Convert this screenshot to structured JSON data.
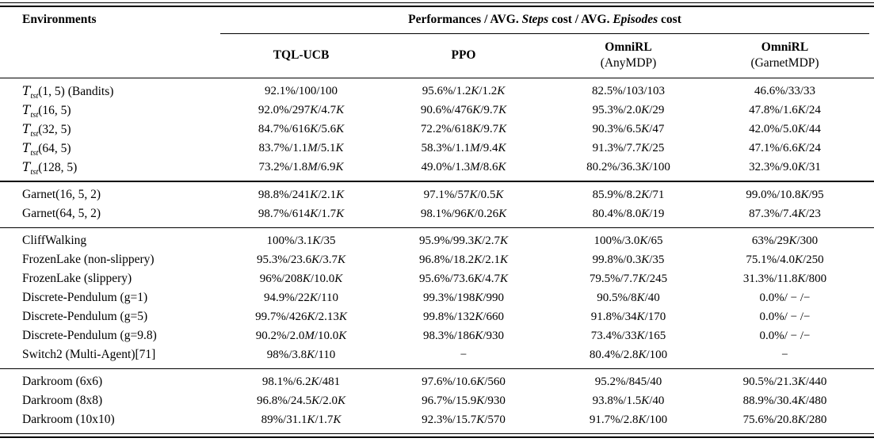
{
  "header": {
    "environments_label": "Environments",
    "performance_title_parts": [
      {
        "text": "Performances / AVG. ",
        "italic": false
      },
      {
        "text": "Steps",
        "italic": true
      },
      {
        "text": " cost / AVG. ",
        "italic": false
      },
      {
        "text": "Episodes",
        "italic": true
      },
      {
        "text": " cost",
        "italic": false
      }
    ],
    "columns": [
      {
        "name": "TQL-UCB",
        "sub": ""
      },
      {
        "name": "PPO",
        "sub": ""
      },
      {
        "name": "OmniRL",
        "sub": "(AnyMDP)"
      },
      {
        "name": "OmniRL",
        "sub": "(GarnetMDP)"
      }
    ]
  },
  "groups": [
    {
      "rows": [
        {
          "env": "𝒯_{tst}(1, 5) (Bandits)",
          "values": [
            "92.1%/100/100",
            "95.6%/1.2K/1.2K",
            "82.5%/103/103",
            "46.6%/33/33"
          ]
        },
        {
          "env": "𝒯_{tst}(16, 5)",
          "values": [
            "92.0%/297K/4.7K",
            "90.6%/476K/9.7K",
            "95.3%/2.0K/29",
            "47.8%/1.6K/24"
          ]
        },
        {
          "env": "𝒯_{tst}(32, 5)",
          "values": [
            "84.7%/616K/5.6K",
            "72.2%/618K/9.7K",
            "90.3%/6.5K/47",
            "42.0%/5.0K/44"
          ]
        },
        {
          "env": "𝒯_{tst}(64, 5)",
          "values": [
            "83.7%/1.1M/5.1K",
            "58.3%/1.1M/9.4K",
            "91.3%/7.7K/25",
            "47.1%/6.6K/24"
          ]
        },
        {
          "env": "𝒯_{tst}(128, 5)",
          "values": [
            "73.2%/1.8M/6.9K",
            "49.0%/1.3M/8.6K",
            "80.2%/36.3K/100",
            "32.3%/9.0K/31"
          ]
        }
      ]
    },
    {
      "rows": [
        {
          "env": "Garnet(16, 5, 2)",
          "values": [
            "98.8%/241K/2.1K",
            "97.1%/57K/0.5K",
            "85.9%/8.2K/71",
            "99.0%/10.8K/95"
          ]
        },
        {
          "env": "Garnet(64, 5, 2)",
          "values": [
            "98.7%/614K/1.7K",
            "98.1%/96K/0.26K",
            "80.4%/8.0K/19",
            "87.3%/7.4K/23"
          ]
        }
      ]
    },
    {
      "rows": [
        {
          "env": "CliffWalking",
          "values": [
            "100%/3.1K/35",
            "95.9%/99.3K/2.7K",
            "100%/3.0K/65",
            "63%/29K/300"
          ]
        },
        {
          "env": "FrozenLake (non-slippery)",
          "values": [
            "95.3%/23.6K/3.7K",
            "96.8%/18.2K/2.1K",
            "99.8%/0.3K/35",
            "75.1%/4.0K/250"
          ]
        },
        {
          "env": "FrozenLake (slippery)",
          "values": [
            "96%/208K/10.0K",
            "95.6%/73.6K/4.7K",
            "79.5%/7.7K/245",
            "31.3%/11.8K/800"
          ]
        },
        {
          "env": "Discrete-Pendulum (g=1)",
          "values": [
            "94.9%/22K/110",
            "99.3%/198K/990",
            "90.5%/8K/40",
            "0.0%/ − /−"
          ]
        },
        {
          "env": "Discrete-Pendulum (g=5)",
          "values": [
            "99.7%/426K/2.13K",
            "99.8%/132K/660",
            "91.8%/34K/170",
            "0.0%/ − /−"
          ]
        },
        {
          "env": "Discrete-Pendulum (g=9.8)",
          "values": [
            "90.2%/2.0M/10.0K",
            "98.3%/186K/930",
            "73.4%/33K/165",
            "0.0%/ − /−"
          ]
        },
        {
          "env": "Switch2 (Multi-Agent)[71]",
          "values": [
            "98%/3.8K/110",
            "−",
            "80.4%/2.8K/100",
            "−"
          ]
        }
      ]
    },
    {
      "rows": [
        {
          "env": "Darkroom (6x6)",
          "values": [
            "98.1%/6.2K/481",
            "97.6%/10.6K/560",
            "95.2%/845/40",
            "90.5%/21.3K/440"
          ]
        },
        {
          "env": "Darkroom (8x8)",
          "values": [
            "96.8%/24.5K/2.0K",
            "96.7%/15.9K/930",
            "93.8%/1.5K/40",
            "88.9%/30.4K/480"
          ]
        },
        {
          "env": "Darkroom (10x10)",
          "values": [
            "89%/31.1K/1.7K",
            "92.3%/15.7K/570",
            "91.7%/2.8K/100",
            "75.6%/20.8K/280"
          ]
        }
      ]
    }
  ]
}
